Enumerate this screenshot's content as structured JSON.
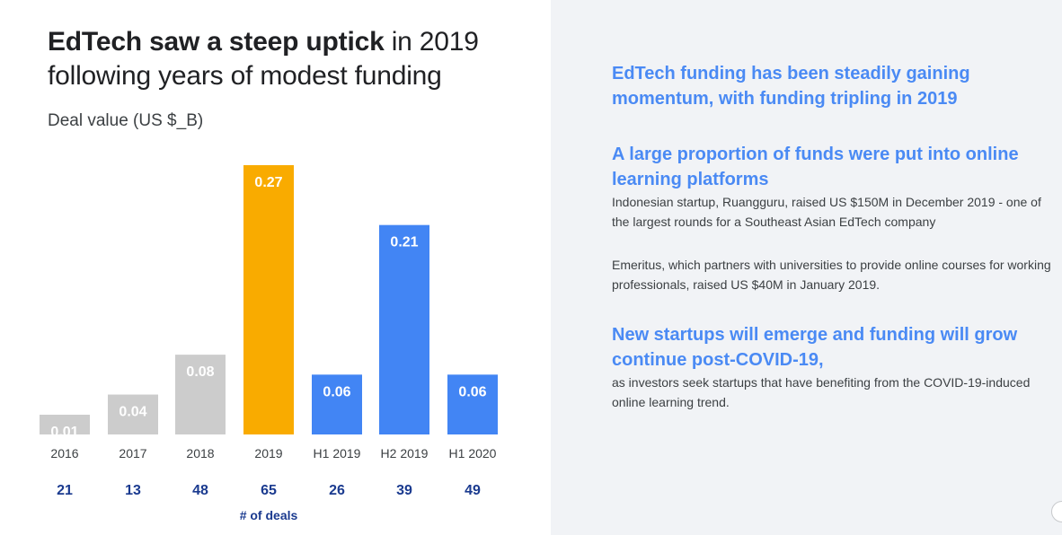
{
  "title": {
    "bold": "EdTech saw a steep uptick",
    "rest": " in 2019 following years of modest funding"
  },
  "ylabel": "Deal value (US $_B)",
  "chart_data": {
    "type": "bar",
    "categories": [
      "2016",
      "2017",
      "2018",
      "2019",
      "H1 2019",
      "H2 2019",
      "H1 2020"
    ],
    "values": [
      0.01,
      0.04,
      0.08,
      0.27,
      0.06,
      0.21,
      0.06
    ],
    "value_labels": [
      "0.01",
      "0.04",
      "0.08",
      "0.27",
      "0.06",
      "0.21",
      "0.06"
    ],
    "colors": [
      "#cccccc",
      "#cccccc",
      "#cccccc",
      "#f9ab00",
      "#4285f4",
      "#4285f4",
      "#4285f4"
    ],
    "deals": [
      "21",
      "13",
      "48",
      "65",
      "26",
      "39",
      "49"
    ],
    "deals_label": "# of deals",
    "ylabel": "Deal value (US $_B)",
    "ylim": [
      0,
      0.3
    ]
  },
  "insights": [
    {
      "heading": "EdTech funding has been steadily gaining momentum, with funding tripling in 2019"
    },
    {
      "heading": "A large proportion of funds were put into online learning platforms",
      "body": [
        "Indonesian startup, Ruangguru, raised US $150M in December 2019 - one of the largest rounds for a Southeast Asian EdTech company",
        "Emeritus, which partners with universities to provide online courses for working professionals, raised US $40M in January 2019."
      ]
    },
    {
      "heading": "New startups will emerge and funding will grow continue post-COVID-19,",
      "body": [
        "as investors seek startups that have benefiting from the COVID-19-induced online learning trend."
      ]
    }
  ]
}
